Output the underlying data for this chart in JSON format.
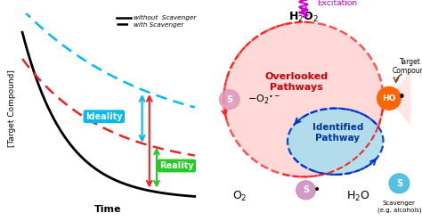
{
  "left_panel": {
    "ylabel": "[Target Compound]",
    "xlabel": "Time",
    "legend_solid": "without  Scavenger",
    "legend_dashed": "with Scavenger",
    "ideality_label": "Ideality",
    "ideality_color": "#00bbee",
    "reality_label": "Reality",
    "reality_color": "#22cc22",
    "curve_solid_color": "#000000",
    "curve_red_color": "#ee2222",
    "curve_cyan_color": "#00bbee"
  },
  "right_panel": {
    "overlooked_label": "Overlooked\nPathways",
    "identified_label": "Identified\nPathway",
    "excitation_label": "Excitation",
    "excitation_color": "#cc00cc",
    "ho_color": "#ff6600",
    "scavenger_label": "Scavenger\n(e.g. alcohols)",
    "target_compound_label": "Target\nCompound",
    "s_lavender": "#cc88bb",
    "s_cyan": "#44bbdd",
    "s_pink": "#dd99bb"
  }
}
